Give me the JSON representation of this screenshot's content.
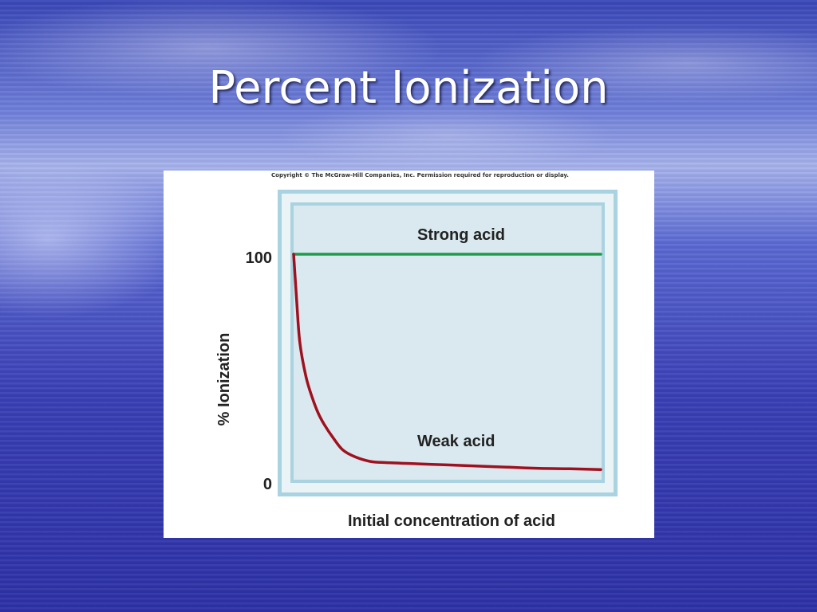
{
  "slide": {
    "title": "Percent Ionization"
  },
  "figure": {
    "copyright": "Copyright © The McGraw-Hill Companies, Inc. Permission required for reproduction or display."
  },
  "chart_data": {
    "type": "line",
    "xlabel": "Initial concentration of acid",
    "ylabel": "% Ionization",
    "y_ticks": [
      "100",
      "0"
    ],
    "ylim": [
      0,
      100
    ],
    "xlim": [
      0,
      1
    ],
    "x_ticks_shown": false,
    "grid": false,
    "series": [
      {
        "name": "Strong acid",
        "color": "#1e9a4a",
        "x": [
          0.0,
          0.25,
          0.5,
          0.75,
          1.0
        ],
        "y": [
          100,
          100,
          100,
          100,
          100
        ]
      },
      {
        "name": "Weak acid",
        "color": "#a0101e",
        "x": [
          0.0,
          0.01,
          0.02,
          0.04,
          0.06,
          0.08,
          0.1,
          0.13,
          0.16,
          0.2,
          0.25,
          0.3,
          0.4,
          0.5,
          0.6,
          0.7,
          0.8,
          0.9,
          1.0
        ],
        "y": [
          100,
          80,
          62,
          47,
          38,
          31,
          26,
          20,
          15,
          12,
          10,
          9.5,
          9,
          8.5,
          8,
          7.5,
          7,
          6.8,
          6.5
        ]
      }
    ]
  },
  "colors": {
    "frame_outer": "#a9d3e0",
    "frame_inner": "#dcebf1",
    "plot_bg": "#d9e9ef",
    "strong_acid": "#1e9a4a",
    "weak_acid": "#a0101e"
  }
}
